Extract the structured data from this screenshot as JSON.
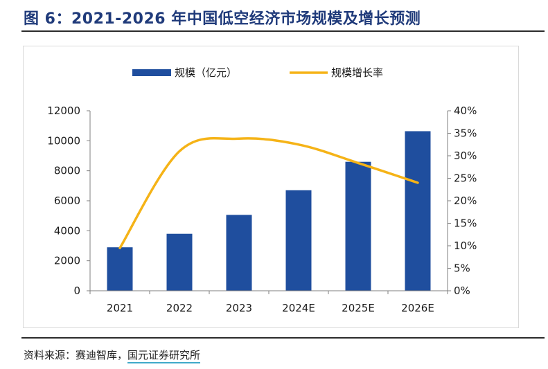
{
  "figure": {
    "title": "图 6：2021-2026 年中国低空经济市场规模及增长预测",
    "source_prefix": "资料来源：赛迪智库，",
    "source_org": "国元证券研究所"
  },
  "chart_data": {
    "type": "bar",
    "categories": [
      "2021",
      "2022",
      "2023",
      "2024E",
      "2025E",
      "2026E"
    ],
    "series": [
      {
        "name": "规模（亿元）",
        "type": "bar",
        "axis": "left",
        "values": [
          2900,
          3800,
          5060,
          6700,
          8600,
          10640
        ]
      },
      {
        "name": "规模增长率",
        "type": "line",
        "axis": "right",
        "values": [
          9.5,
          31.0,
          33.8,
          32.5,
          28.4,
          24.0
        ]
      }
    ],
    "y_left": {
      "min": 0,
      "max": 12000,
      "step": 2000
    },
    "y_right": {
      "min": 0,
      "max": 40,
      "step": 5,
      "unit": "%"
    },
    "legend": "top-center",
    "grid": false,
    "colors": {
      "bar": "#1f4e9e",
      "line": "#f5b317"
    }
  }
}
